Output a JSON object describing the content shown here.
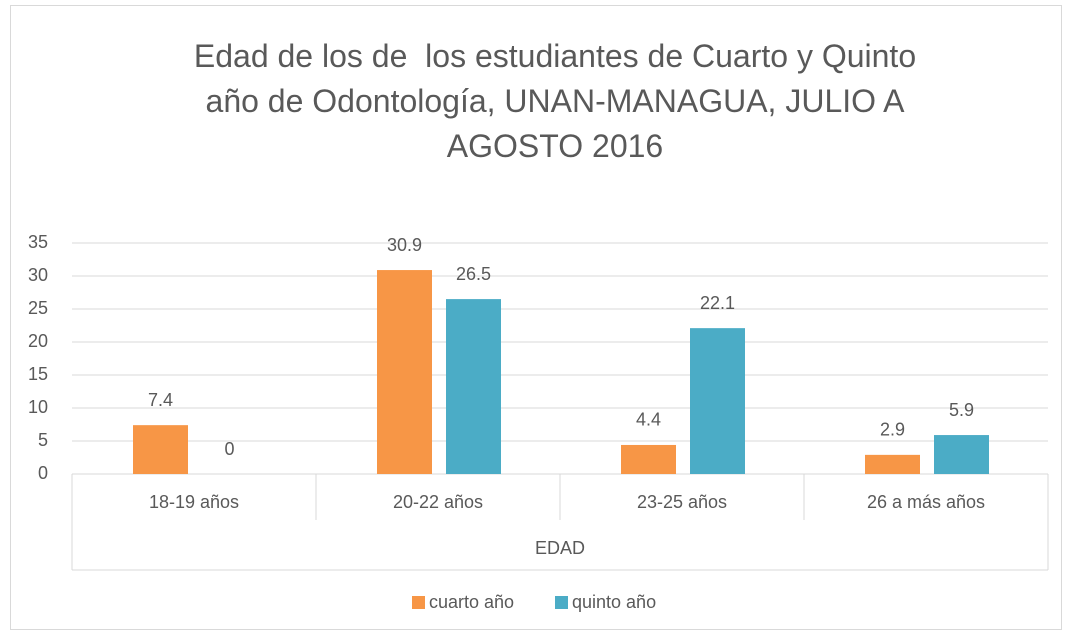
{
  "chart_data": {
    "type": "bar",
    "title": "Edad de los de  los estudiantes de Cuarto y Quinto año de Odontología, UNAN-MANAGUA, JULIO A AGOSTO 2016",
    "x_label": "EDAD",
    "categories": [
      "18-19 años",
      "20-22 años",
      "23-25  años",
      "26 a más años"
    ],
    "series": [
      {
        "name": "cuarto año",
        "color": "#f79646",
        "values": [
          7.4,
          30.9,
          4.4,
          2.9
        ]
      },
      {
        "name": "quinto año",
        "color": "#4bacc6",
        "values": [
          0,
          26.5,
          22.1,
          5.9
        ]
      }
    ],
    "ylim": [
      0,
      35
    ],
    "yticks": [
      0,
      5,
      10,
      15,
      20,
      25,
      30,
      35
    ],
    "grid": true,
    "legend": "bottom"
  }
}
